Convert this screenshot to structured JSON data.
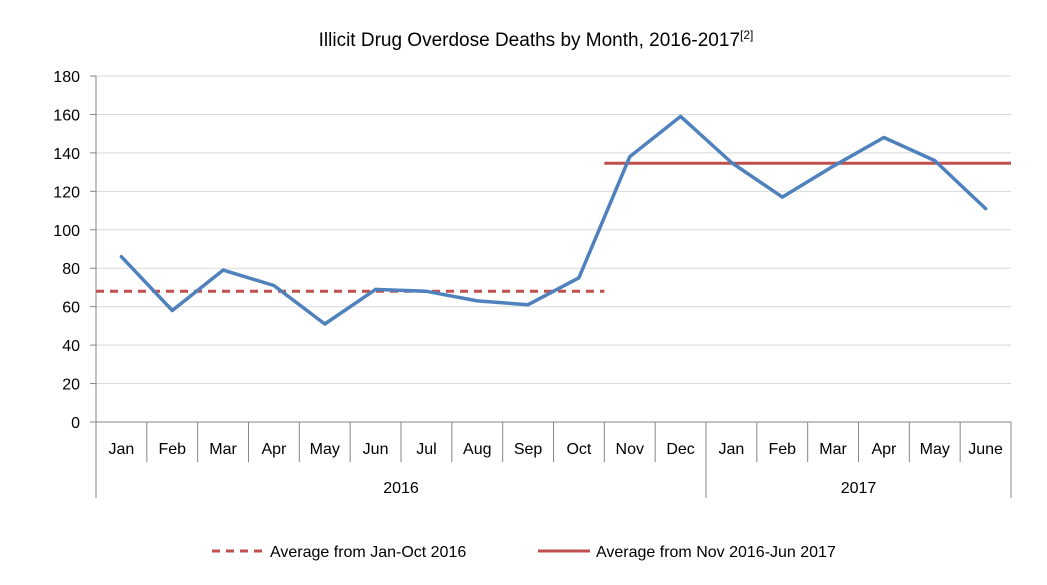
{
  "chart_data": {
    "type": "line",
    "title": "Illicit Drug Overdose Deaths by Month, 2016-2017",
    "title_superscript": "[2]",
    "categories": [
      "Jan",
      "Feb",
      "Mar",
      "Apr",
      "May",
      "Jun",
      "Jul",
      "Aug",
      "Sep",
      "Oct",
      "Nov",
      "Dec",
      "Jan",
      "Feb",
      "Mar",
      "Apr",
      "May",
      "June"
    ],
    "x_groups": [
      {
        "label": "2016",
        "start": 0,
        "end": 11
      },
      {
        "label": "2017",
        "start": 12,
        "end": 17
      }
    ],
    "series": [
      {
        "values": [
          86,
          58,
          79,
          71,
          51,
          69,
          68,
          63,
          61,
          75,
          138,
          159,
          135,
          117,
          133,
          148,
          136,
          111
        ],
        "color": "#4f81bd",
        "style": "solid"
      }
    ],
    "reference_lines": [
      {
        "name": "Average from Jan-Oct 2016",
        "value": 68,
        "from_index": 0,
        "to_index": 9,
        "color": "#c0504d",
        "style": "dashed"
      },
      {
        "name": "Average from Nov 2016-Jun 2017",
        "value": 134.6,
        "from_index": 10,
        "to_index": 17,
        "color": "#c0504d",
        "style": "solid"
      }
    ],
    "ylim": [
      0,
      180
    ],
    "yticks": [
      0,
      20,
      40,
      60,
      80,
      100,
      120,
      140,
      160,
      180
    ],
    "xlabel": "",
    "ylabel": "",
    "grid": true,
    "legend_position": "bottom"
  }
}
